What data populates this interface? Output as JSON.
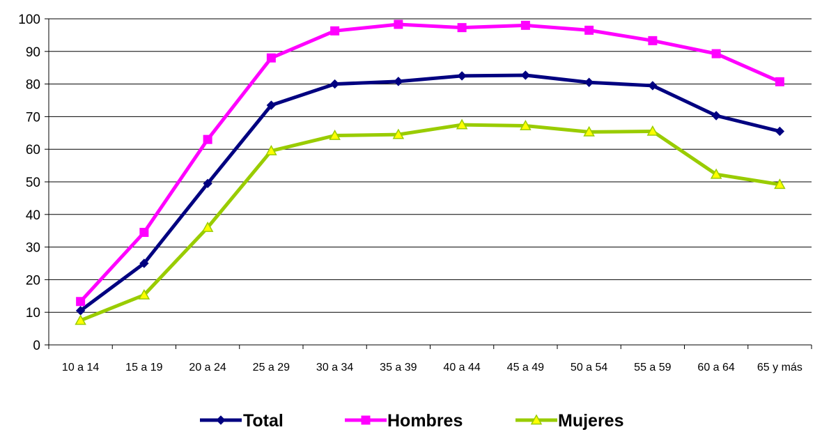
{
  "chart_data": {
    "type": "line",
    "categories": [
      "10 a 14",
      "15 a 19",
      "20 a 24",
      "25 a 29",
      "30 a 34",
      "35 a 39",
      "40 a 44",
      "45 a 49",
      "50 a 54",
      "55 a 59",
      "60 a 64",
      "65 y más"
    ],
    "series": [
      {
        "name": "Total",
        "color": "#000080",
        "marker": "diamond",
        "values": [
          10.5,
          25.0,
          49.5,
          73.5,
          80.0,
          80.8,
          82.5,
          82.7,
          80.5,
          79.5,
          70.3,
          65.5
        ]
      },
      {
        "name": "Hombres",
        "color": "#ff00ff",
        "marker": "square",
        "values": [
          13.3,
          34.5,
          63.0,
          88.0,
          96.3,
          98.3,
          97.3,
          98.0,
          96.5,
          93.3,
          89.3,
          80.7
        ]
      },
      {
        "name": "Mujeres",
        "color": "#99cc00",
        "marker": "triangle",
        "marker_fill": "#ffff00",
        "values": [
          7.5,
          15.3,
          36.0,
          59.5,
          64.2,
          64.5,
          67.5,
          67.2,
          65.3,
          65.5,
          52.3,
          49.2
        ]
      }
    ],
    "y_ticks": [
      "0",
      "10",
      "20",
      "30",
      "40",
      "50",
      "60",
      "70",
      "80",
      "90",
      "100"
    ],
    "ylim": [
      0,
      100
    ],
    "grid": true,
    "legend_position": "bottom"
  }
}
